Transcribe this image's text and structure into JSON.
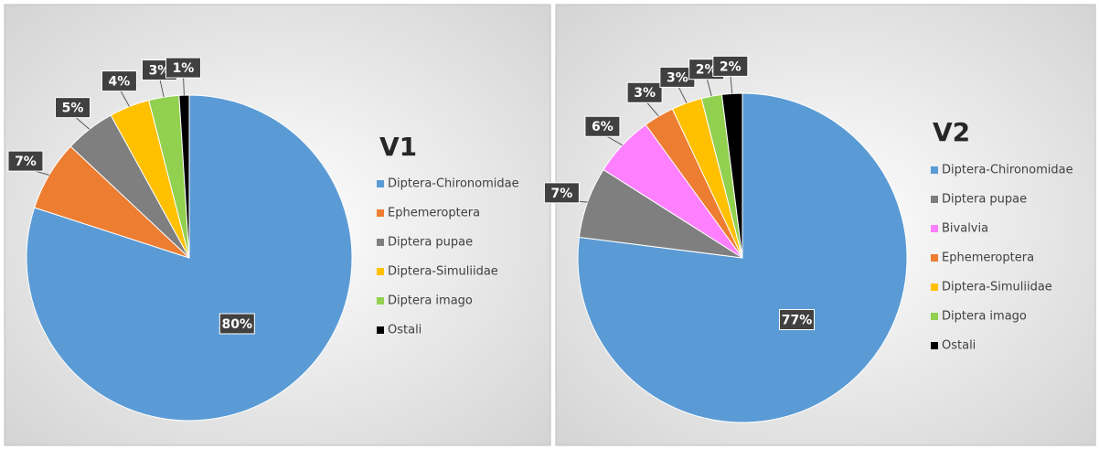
{
  "chart_data": [
    {
      "type": "pie",
      "title": "V1",
      "categories": [
        "Diptera-Chironomidae",
        "Ephemeroptera",
        "Diptera pupae",
        "Diptera-Simuliidae",
        "Diptera imago",
        "Ostali"
      ],
      "values": [
        80,
        7,
        5,
        4,
        3,
        1
      ],
      "value_labels": [
        "80%",
        "7%",
        "5%",
        "4%",
        "3%",
        "1%"
      ],
      "colors": [
        "#5b9bd5",
        "#ed7d31",
        "#7f7f7f",
        "#ffc000",
        "#92d050",
        "#000000"
      ]
    },
    {
      "type": "pie",
      "title": "V2",
      "categories": [
        "Diptera-Chironomidae",
        "Diptera pupae",
        "Bivalvia",
        "Ephemeroptera",
        "Diptera-Simuliidae",
        "Diptera imago",
        "Ostali"
      ],
      "values": [
        77,
        7,
        6,
        3,
        3,
        2,
        2
      ],
      "value_labels": [
        "77%",
        "7%",
        "6%",
        "3%",
        "3%",
        "2%",
        "2%"
      ],
      "colors": [
        "#5b9bd5",
        "#7f7f7f",
        "#ff80ff",
        "#ed7d31",
        "#ffc000",
        "#92d050",
        "#000000"
      ]
    }
  ]
}
